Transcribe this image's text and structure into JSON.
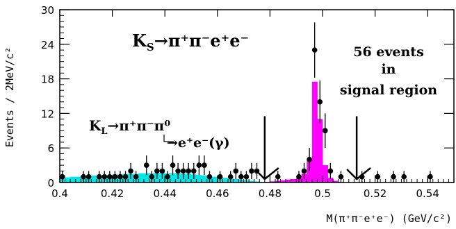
{
  "chart_data": {
    "type": "scatter",
    "xlabel": "M(π⁺π⁻e⁺e⁻) (GeV/c²)",
    "ylabel": "Events / 2MeV/c²",
    "xlim": [
      0.4,
      0.55
    ],
    "ylim": [
      0,
      30
    ],
    "x_ticks": [
      "0.4",
      "0.42",
      "0.44",
      "0.46",
      "0.48",
      "0.5",
      "0.52",
      "0.54"
    ],
    "y_ticks": [
      "0",
      "6",
      "12",
      "18",
      "24",
      "30"
    ],
    "colors": {
      "data": "#000000",
      "kl_background": "#00e5e5",
      "ks_signal": "#ff00ff"
    },
    "annotations": {
      "title_main": "K",
      "title_sub": "S",
      "title_decay": "→π⁺π⁻e⁺e⁻",
      "events_line1": "56 events",
      "events_line2": "in",
      "events_line3": "signal region",
      "kl_main": "K",
      "kl_sub": "L",
      "kl_decay": "→π⁺π⁻π⁰",
      "kl_dalitz": "→e⁺e⁻(γ)"
    },
    "signal_region": [
      0.478,
      0.513
    ],
    "series": [
      {
        "role": "data",
        "points": [
          [
            0.401,
            1,
            1
          ],
          [
            0.409,
            1,
            1
          ],
          [
            0.411,
            1,
            1
          ],
          [
            0.415,
            1,
            1
          ],
          [
            0.417,
            1,
            1
          ],
          [
            0.419,
            1,
            1
          ],
          [
            0.421,
            1,
            1
          ],
          [
            0.423,
            1,
            1
          ],
          [
            0.425,
            1,
            1
          ],
          [
            0.427,
            2,
            1.4
          ],
          [
            0.429,
            1,
            1
          ],
          [
            0.433,
            3,
            1.7
          ],
          [
            0.435,
            1,
            1
          ],
          [
            0.437,
            2,
            1.4
          ],
          [
            0.439,
            2,
            1.4
          ],
          [
            0.441,
            1,
            1
          ],
          [
            0.443,
            3,
            1.7
          ],
          [
            0.445,
            2,
            1.4
          ],
          [
            0.447,
            2,
            1.4
          ],
          [
            0.449,
            2,
            1.4
          ],
          [
            0.451,
            2,
            1.4
          ],
          [
            0.453,
            3,
            1.7
          ],
          [
            0.455,
            3,
            1.7
          ],
          [
            0.457,
            1,
            1
          ],
          [
            0.461,
            1,
            1
          ],
          [
            0.465,
            1,
            1
          ],
          [
            0.467,
            2,
            1.4
          ],
          [
            0.469,
            1,
            1
          ],
          [
            0.471,
            1,
            1
          ],
          [
            0.473,
            2,
            1.4
          ],
          [
            0.475,
            2,
            1.4
          ],
          [
            0.483,
            1,
            1
          ],
          [
            0.491,
            1,
            1
          ],
          [
            0.493,
            2,
            1.4
          ],
          [
            0.495,
            4,
            2
          ],
          [
            0.497,
            23,
            4.8
          ],
          [
            0.499,
            14,
            3.7
          ],
          [
            0.501,
            9,
            3
          ],
          [
            0.503,
            2,
            1.4
          ],
          [
            0.507,
            1,
            1
          ],
          [
            0.515,
            1,
            1
          ],
          [
            0.521,
            1,
            1
          ],
          [
            0.527,
            1,
            1
          ],
          [
            0.531,
            1,
            1
          ],
          [
            0.541,
            1,
            1
          ]
        ]
      },
      {
        "role": "kl_background",
        "bins": [
          [
            0.4,
            0.8
          ],
          [
            0.402,
            0.9
          ],
          [
            0.404,
            1.0
          ],
          [
            0.406,
            1.0
          ],
          [
            0.408,
            1.1
          ],
          [
            0.41,
            1.1
          ],
          [
            0.412,
            1.2
          ],
          [
            0.414,
            1.2
          ],
          [
            0.416,
            1.3
          ],
          [
            0.418,
            1.3
          ],
          [
            0.42,
            1.4
          ],
          [
            0.422,
            1.4
          ],
          [
            0.424,
            1.5
          ],
          [
            0.426,
            1.5
          ],
          [
            0.428,
            1.5
          ],
          [
            0.43,
            1.6
          ],
          [
            0.432,
            1.6
          ],
          [
            0.434,
            1.6
          ],
          [
            0.436,
            1.6
          ],
          [
            0.438,
            1.6
          ],
          [
            0.44,
            1.6
          ],
          [
            0.442,
            1.6
          ],
          [
            0.444,
            1.6
          ],
          [
            0.446,
            1.5
          ],
          [
            0.448,
            1.5
          ],
          [
            0.45,
            1.4
          ],
          [
            0.452,
            1.3
          ],
          [
            0.454,
            1.2
          ],
          [
            0.456,
            1.1
          ],
          [
            0.458,
            1.0
          ],
          [
            0.46,
            0.9
          ],
          [
            0.462,
            0.8
          ],
          [
            0.464,
            0.7
          ],
          [
            0.466,
            0.6
          ],
          [
            0.468,
            0.5
          ],
          [
            0.47,
            0.4
          ],
          [
            0.472,
            0.3
          ],
          [
            0.474,
            0.2
          ],
          [
            0.476,
            0.1
          ]
        ]
      },
      {
        "role": "ks_signal",
        "bins": [
          [
            0.478,
            0.1
          ],
          [
            0.48,
            0.2
          ],
          [
            0.482,
            0.3
          ],
          [
            0.484,
            0.4
          ],
          [
            0.486,
            0.5
          ],
          [
            0.488,
            0.6
          ],
          [
            0.49,
            0.8
          ],
          [
            0.492,
            1.5
          ],
          [
            0.494,
            4
          ],
          [
            0.496,
            17.5
          ],
          [
            0.498,
            11
          ],
          [
            0.5,
            3
          ],
          [
            0.502,
            0.8
          ],
          [
            0.504,
            0.3
          ],
          [
            0.506,
            0.1
          ]
        ]
      }
    ]
  }
}
